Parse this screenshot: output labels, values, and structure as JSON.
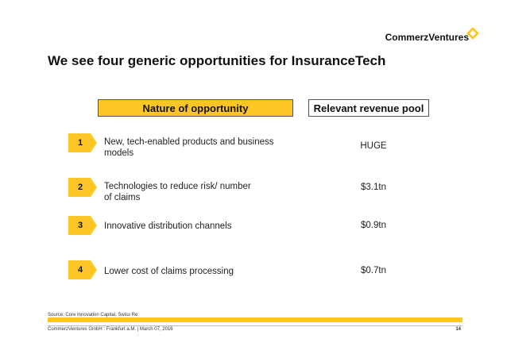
{
  "brand": {
    "name": "CommerzVentures",
    "logo_color": "#fdc626"
  },
  "title": "We see four generic opportunities for InsuranceTech",
  "headers": {
    "nature": "Nature of opportunity",
    "revenue": "Relevant revenue pool"
  },
  "rows": [
    {
      "number": "1",
      "text_line1": "New, tech-enabled products and business",
      "text_line2": "models",
      "value": "HUGE"
    },
    {
      "number": "2",
      "text_line1": "Technologies to reduce risk/ number",
      "text_line2": "of claims",
      "value": "$3.1tn"
    },
    {
      "number": "3",
      "text_line1": "Innovative distribution channels",
      "text_line2": "",
      "value": "$0.9tn"
    },
    {
      "number": "4",
      "text_line1": "Lower cost of claims processing",
      "text_line2": "",
      "value": "$0.7tn"
    }
  ],
  "footer": {
    "source": "Source: Core Innovation Capital, Swiss Re",
    "company_line": "CommerzVentures GmbH  :  Frankfurt a.M. | March 07, 2016",
    "page_number": "14"
  },
  "colors": {
    "accent": "#fdc626",
    "text": "#111111"
  }
}
